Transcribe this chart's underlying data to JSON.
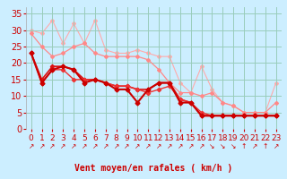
{
  "title": "",
  "xlabel": "Vent moyen/en rafales ( km/h )",
  "background_color": "#cceeff",
  "grid_color": "#99ccbb",
  "xlim": [
    -0.5,
    23.5
  ],
  "ylim": [
    0,
    37
  ],
  "yticks": [
    0,
    5,
    10,
    15,
    20,
    25,
    30,
    35
  ],
  "xticks": [
    0,
    1,
    2,
    3,
    4,
    5,
    6,
    7,
    8,
    9,
    10,
    11,
    12,
    13,
    14,
    15,
    16,
    17,
    18,
    19,
    20,
    21,
    22,
    23
  ],
  "lines": [
    {
      "x": [
        0,
        1,
        2,
        3,
        4,
        5,
        6,
        7,
        8,
        9,
        10,
        11,
        12,
        13,
        14,
        15,
        16,
        17,
        18,
        19,
        20,
        21,
        22,
        23
      ],
      "y": [
        30,
        29,
        33,
        26,
        32,
        26,
        33,
        24,
        23,
        23,
        24,
        23,
        22,
        22,
        14,
        11,
        19,
        12,
        8,
        7,
        5,
        5,
        5,
        14
      ],
      "color": "#ffaaaa",
      "linewidth": 0.8,
      "marker": "D",
      "markersize": 2.0,
      "zorder": 1
    },
    {
      "x": [
        0,
        1,
        2,
        3,
        4,
        5,
        6,
        7,
        8,
        9,
        10,
        11,
        12,
        13,
        14,
        15,
        16,
        17,
        18,
        19,
        20,
        21,
        22,
        23
      ],
      "y": [
        29,
        25,
        22,
        23,
        25,
        26,
        23,
        22,
        22,
        22,
        22,
        21,
        18,
        14,
        11,
        11,
        10,
        11,
        8,
        7,
        5,
        5,
        5,
        8
      ],
      "color": "#ff8888",
      "linewidth": 0.9,
      "marker": "D",
      "markersize": 2.0,
      "zorder": 2
    },
    {
      "x": [
        0,
        1,
        2,
        3,
        4,
        5,
        6,
        7,
        8,
        9,
        10,
        11,
        12,
        13,
        14,
        15,
        16,
        17,
        18,
        19,
        20,
        21,
        22,
        23
      ],
      "y": [
        23,
        15,
        19,
        19,
        18,
        15,
        15,
        14,
        13,
        13,
        12,
        12,
        14,
        14,
        9,
        8,
        4,
        4,
        4,
        4,
        4,
        4,
        4,
        4
      ],
      "color": "#dd1111",
      "linewidth": 1.2,
      "marker": "D",
      "markersize": 2.2,
      "zorder": 3
    },
    {
      "x": [
        0,
        1,
        2,
        3,
        4,
        5,
        6,
        7,
        8,
        9,
        10,
        11,
        12,
        13,
        14,
        15,
        16,
        17,
        18,
        19,
        20,
        21,
        22,
        23
      ],
      "y": [
        23,
        14,
        18,
        19,
        18,
        14,
        15,
        14,
        12,
        12,
        8,
        12,
        14,
        14,
        8,
        8,
        4,
        4,
        4,
        4,
        4,
        4,
        4,
        4
      ],
      "color": "#cc0000",
      "linewidth": 1.5,
      "marker": "D",
      "markersize": 2.5,
      "zorder": 4
    },
    {
      "x": [
        0,
        1,
        2,
        3,
        4,
        5,
        6,
        7,
        8,
        9,
        10,
        11,
        12,
        13,
        14,
        15,
        16,
        17,
        18,
        19,
        20,
        21,
        22,
        23
      ],
      "y": [
        23,
        14,
        18,
        18,
        15,
        15,
        15,
        14,
        13,
        13,
        12,
        11,
        12,
        13,
        9,
        8,
        5,
        4,
        4,
        4,
        4,
        4,
        4,
        4
      ],
      "color": "#ee3333",
      "linewidth": 1.0,
      "marker": "D",
      "markersize": 2.2,
      "zorder": 3
    }
  ],
  "arrows": [
    "↗",
    "↗",
    "↗",
    "↗",
    "↗",
    "↗",
    "↗",
    "↗",
    "↗",
    "↗",
    "↗",
    "↗",
    "↗",
    "↗",
    "↗",
    "↗",
    "↗",
    "↘",
    "↘",
    "↘",
    "↑",
    "↗",
    "↑",
    "↗"
  ],
  "xlabel_color": "#cc0000",
  "tick_color": "#cc0000",
  "xlabel_fontsize": 7,
  "ytick_fontsize": 7,
  "xtick_fontsize": 6.5
}
